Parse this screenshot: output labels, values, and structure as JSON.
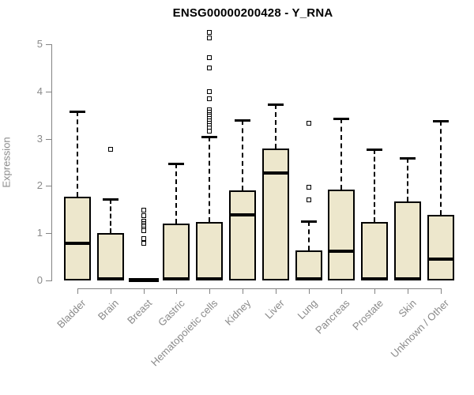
{
  "chart_data": {
    "type": "boxplot",
    "title": "ENSG00000200428 - Y_RNA",
    "ylabel": "Expression",
    "ylim": [
      0,
      5
    ],
    "y_ticks": [
      0,
      1,
      2,
      3,
      4,
      5
    ],
    "grid": false,
    "legend": "none",
    "categories": [
      "Bladder",
      "Brain",
      "Breast",
      "Gastric",
      "Hematopoietic cells",
      "Kidney",
      "Liver",
      "Lung",
      "Pancreas",
      "Prostate",
      "Skin",
      "Unknown / Other"
    ],
    "series": [
      {
        "category": "Bladder",
        "low": 0,
        "q1": 0,
        "median": 0.79,
        "q3": 1.77,
        "high": 3.58,
        "outliers": []
      },
      {
        "category": "Brain",
        "low": 0,
        "q1": 0,
        "median": 0.03,
        "q3": 1.01,
        "high": 1.72,
        "outliers": [
          2.78
        ]
      },
      {
        "category": "Breast",
        "low": 0,
        "q1": 0,
        "median": 0.0,
        "q3": 0.0,
        "high": 0.0,
        "outliers": [
          1.48,
          1.37,
          1.25,
          1.21,
          1.17,
          1.13,
          1.09,
          1.05,
          0.89,
          0.78
        ]
      },
      {
        "category": "Gastric",
        "low": 0,
        "q1": 0,
        "median": 0.03,
        "q3": 1.21,
        "high": 2.48,
        "outliers": []
      },
      {
        "category": "Hematopoietic cells",
        "low": 0,
        "q1": 0,
        "median": 0.03,
        "q3": 1.23,
        "high": 3.05,
        "outliers": [
          5.25,
          5.14,
          4.71,
          4.49,
          3.99,
          3.85,
          3.62,
          3.57,
          3.52,
          3.47,
          3.42,
          3.37,
          3.32,
          3.27,
          3.22,
          3.16
        ]
      },
      {
        "category": "Kidney",
        "low": 0,
        "q1": 0,
        "median": 1.39,
        "q3": 1.9,
        "high": 3.4,
        "outliers": []
      },
      {
        "category": "Liver",
        "low": 0,
        "q1": 0,
        "median": 2.28,
        "q3": 2.8,
        "high": 3.73,
        "outliers": []
      },
      {
        "category": "Lung",
        "low": 0,
        "q1": 0,
        "median": 0.03,
        "q3": 0.64,
        "high": 1.26,
        "outliers": [
          3.33,
          1.98,
          1.7
        ]
      },
      {
        "category": "Pancreas",
        "low": 0,
        "q1": 0,
        "median": 0.62,
        "q3": 1.92,
        "high": 3.43,
        "outliers": []
      },
      {
        "category": "Prostate",
        "low": 0,
        "q1": 0,
        "median": 0.03,
        "q3": 1.23,
        "high": 2.78,
        "outliers": []
      },
      {
        "category": "Skin",
        "low": 0,
        "q1": 0,
        "median": 0.03,
        "q3": 1.68,
        "high": 2.6,
        "outliers": []
      },
      {
        "category": "Unknown / Other",
        "low": 0,
        "q1": 0,
        "median": 0.45,
        "q3": 1.39,
        "high": 3.37,
        "outliers": []
      }
    ],
    "colors": {
      "box_fill": "#ede7cc",
      "box_border": "#000000",
      "median": "#000000",
      "whisker": "#000000",
      "axis": "#848484",
      "axis_text": "#8a8a8a",
      "title": "#000000",
      "background": "#ffffff"
    }
  }
}
